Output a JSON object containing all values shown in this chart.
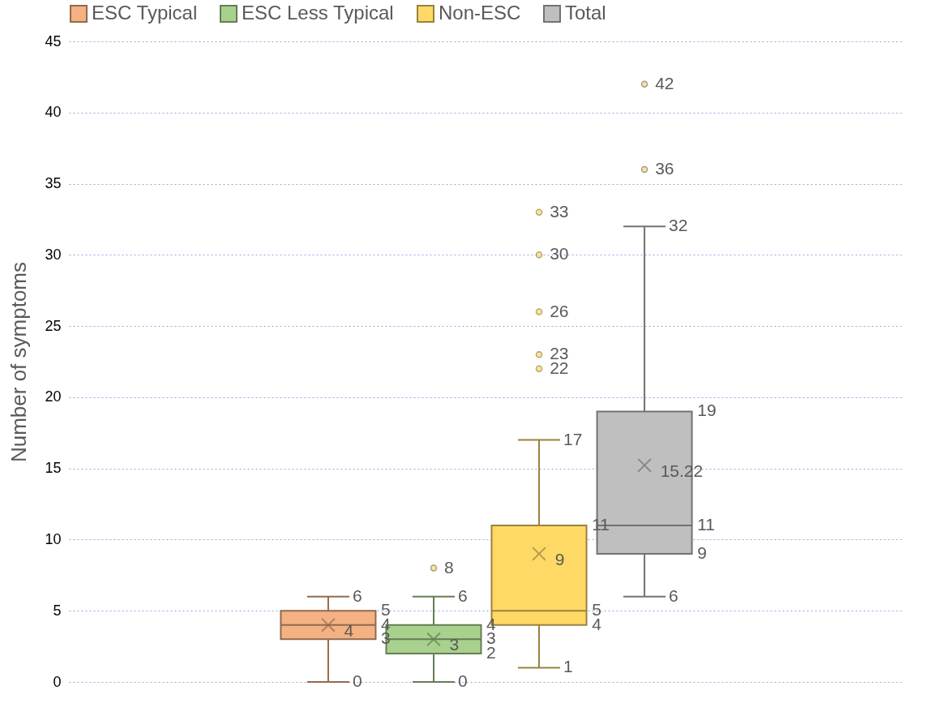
{
  "chart_data": {
    "type": "box",
    "ylabel": "Number of symptoms",
    "categories": [
      null
    ],
    "ylim": [
      0,
      45
    ],
    "yticks": [
      0,
      5,
      10,
      15,
      20,
      25,
      30,
      35,
      40,
      45
    ],
    "grid": "y",
    "legend": "top",
    "tick_labels": "y",
    "series": [
      {
        "name": "ESC Typical",
        "color": "#f4b183",
        "boxes": [
          {
            "low": 0,
            "q1": 3,
            "median": 4,
            "q3": 5,
            "high": 6,
            "mean": 4
          }
        ]
      },
      {
        "name": "ESC Less Typical",
        "color": "#a9d18e",
        "boxes": [
          {
            "low": 0,
            "q1": 2,
            "median": 3,
            "q3": 4,
            "high": 6,
            "mean": 3,
            "outliers": [
              8
            ]
          }
        ]
      },
      {
        "name": "Non-ESC",
        "color": "#ffd966",
        "boxes": [
          {
            "low": 1,
            "q1": 4,
            "median": 5,
            "q3": 11,
            "high": 17,
            "mean": 9,
            "outliers": [
              22,
              23,
              26,
              30,
              33
            ]
          }
        ]
      },
      {
        "name": "Total",
        "color": "#bfbfbf",
        "boxes": [
          {
            "low": 6,
            "q1": 9,
            "median": 11,
            "q3": 19,
            "high": 32,
            "mean": 15.22,
            "outliers": [
              36,
              42
            ]
          }
        ]
      }
    ],
    "data_labels": true,
    "annotations": [
      "0",
      "6",
      "3",
      "5",
      "4",
      "4",
      "0",
      "6",
      "2",
      "4",
      "3",
      "3",
      "8",
      "1",
      "17",
      "4",
      "11",
      "5",
      "9",
      "22",
      "23",
      "26",
      "30",
      "33",
      "6",
      "32",
      "9",
      "19",
      "11",
      "15.22",
      "36",
      "42"
    ]
  }
}
